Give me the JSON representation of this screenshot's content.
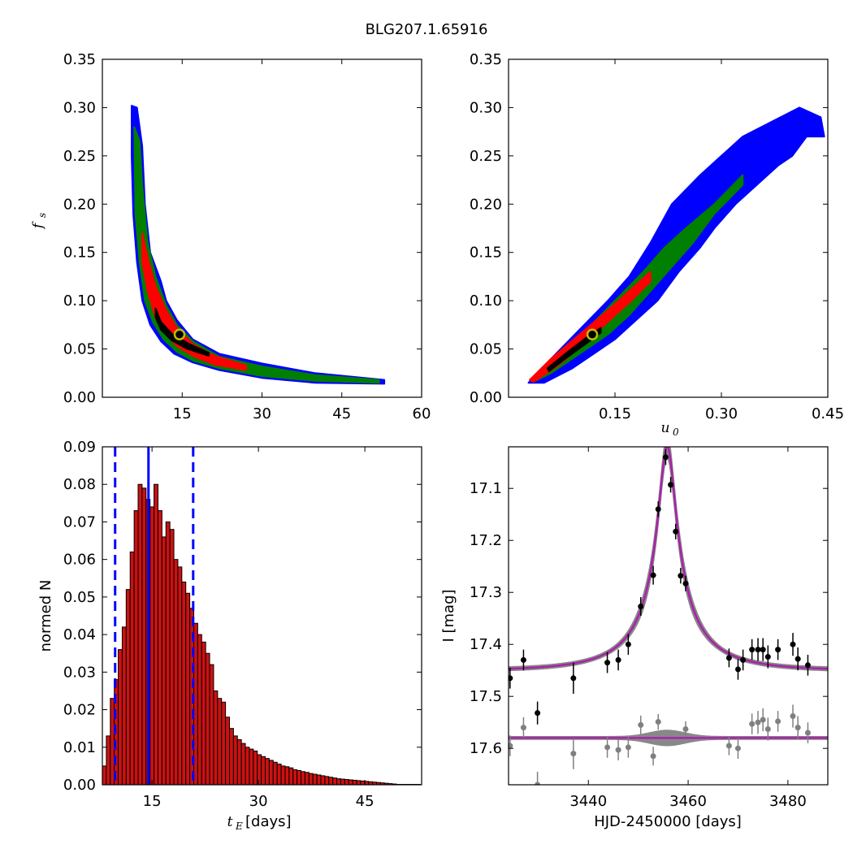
{
  "title": "BLG207.1.65916",
  "colors": {
    "blue": "#0000ff",
    "green": "#007f00",
    "red": "#ff0000",
    "black": "#000000",
    "marker_edge": "#bfbf00",
    "hist_fill": "#cc1111",
    "model": "#aa22aa",
    "band": "#888888",
    "residual": "#808080"
  },
  "chart_data": [
    {
      "id": "fs_vs_tE",
      "type": "heatmap",
      "xlabel": "",
      "ylabel_main": "f",
      "ylabel_sub": "s",
      "xlim": [
        0,
        60
      ],
      "ylim": [
        0,
        0.35
      ],
      "xticks": [
        "15",
        "30",
        "45",
        "60"
      ],
      "yticks": [
        "0.00",
        "0.05",
        "0.10",
        "0.15",
        "0.20",
        "0.25",
        "0.30",
        "0.35"
      ],
      "grid": false,
      "regions": [
        {
          "level": "blue",
          "points": [
            [
              5.5,
              0.302
            ],
            [
              6.5,
              0.3
            ],
            [
              7.5,
              0.26
            ],
            [
              8,
              0.2
            ],
            [
              9,
              0.15
            ],
            [
              11,
              0.12
            ],
            [
              12,
              0.1
            ],
            [
              14,
              0.08
            ],
            [
              17,
              0.06
            ],
            [
              22,
              0.045
            ],
            [
              30,
              0.035
            ],
            [
              40,
              0.025
            ],
            [
              53,
              0.018
            ],
            [
              53,
              0.014
            ],
            [
              40,
              0.015
            ],
            [
              30,
              0.02
            ],
            [
              22,
              0.028
            ],
            [
              17,
              0.036
            ],
            [
              13.5,
              0.045
            ],
            [
              11,
              0.058
            ],
            [
              9,
              0.075
            ],
            [
              7.5,
              0.1
            ],
            [
              6.5,
              0.14
            ],
            [
              5.8,
              0.19
            ],
            [
              5.5,
              0.25
            ]
          ]
        },
        {
          "level": "green",
          "points": [
            [
              6,
              0.28
            ],
            [
              7,
              0.265
            ],
            [
              7.5,
              0.22
            ],
            [
              8.5,
              0.16
            ],
            [
              10,
              0.125
            ],
            [
              12,
              0.095
            ],
            [
              14,
              0.075
            ],
            [
              17,
              0.058
            ],
            [
              22,
              0.042
            ],
            [
              30,
              0.032
            ],
            [
              40,
              0.023
            ],
            [
              52,
              0.018
            ],
            [
              52,
              0.015
            ],
            [
              40,
              0.017
            ],
            [
              30,
              0.022
            ],
            [
              22,
              0.03
            ],
            [
              17,
              0.038
            ],
            [
              14,
              0.047
            ],
            [
              11.5,
              0.06
            ],
            [
              9.5,
              0.078
            ],
            [
              8,
              0.1
            ],
            [
              7,
              0.14
            ],
            [
              6.2,
              0.19
            ]
          ]
        },
        {
          "level": "red",
          "points": [
            [
              7.5,
              0.17
            ],
            [
              8.5,
              0.145
            ],
            [
              10,
              0.115
            ],
            [
              12,
              0.09
            ],
            [
              14,
              0.072
            ],
            [
              17,
              0.055
            ],
            [
              21,
              0.043
            ],
            [
              27,
              0.033
            ],
            [
              27,
              0.028
            ],
            [
              21,
              0.034
            ],
            [
              17,
              0.043
            ],
            [
              14,
              0.053
            ],
            [
              12,
              0.065
            ],
            [
              10,
              0.082
            ],
            [
              8.5,
              0.11
            ],
            [
              7.5,
              0.14
            ]
          ]
        },
        {
          "level": "black",
          "points": [
            [
              10,
              0.092
            ],
            [
              11,
              0.078
            ],
            [
              13,
              0.066
            ],
            [
              16,
              0.056
            ],
            [
              20,
              0.046
            ],
            [
              20,
              0.043
            ],
            [
              16,
              0.05
            ],
            [
              13,
              0.059
            ],
            [
              11,
              0.07
            ],
            [
              10,
              0.083
            ]
          ]
        }
      ],
      "best_fit": {
        "x": 14.5,
        "y": 0.065
      }
    },
    {
      "id": "fs_vs_u0",
      "type": "heatmap",
      "xlabel_main": "u",
      "xlabel_sub": "0",
      "ylabel": "",
      "xlim": [
        0,
        0.45
      ],
      "ylim": [
        0,
        0.35
      ],
      "xticks": [
        "0.15",
        "0.30",
        "0.45"
      ],
      "yticks": [
        "0.00",
        "0.05",
        "0.10",
        "0.15",
        "0.20",
        "0.25",
        "0.30",
        "0.35"
      ],
      "grid": false,
      "regions": [
        {
          "level": "blue",
          "points": [
            [
              0.028,
              0.015
            ],
            [
              0.06,
              0.04
            ],
            [
              0.1,
              0.07
            ],
            [
              0.14,
              0.1
            ],
            [
              0.17,
              0.125
            ],
            [
              0.2,
              0.16
            ],
            [
              0.23,
              0.2
            ],
            [
              0.27,
              0.23
            ],
            [
              0.33,
              0.27
            ],
            [
              0.37,
              0.285
            ],
            [
              0.41,
              0.3
            ],
            [
              0.44,
              0.29
            ],
            [
              0.445,
              0.27
            ],
            [
              0.42,
              0.27
            ],
            [
              0.4,
              0.25
            ],
            [
              0.38,
              0.24
            ],
            [
              0.35,
              0.22
            ],
            [
              0.32,
              0.2
            ],
            [
              0.29,
              0.175
            ],
            [
              0.27,
              0.155
            ],
            [
              0.24,
              0.13
            ],
            [
              0.21,
              0.1
            ],
            [
              0.18,
              0.08
            ],
            [
              0.15,
              0.06
            ],
            [
              0.12,
              0.045
            ],
            [
              0.09,
              0.03
            ],
            [
              0.05,
              0.015
            ]
          ]
        },
        {
          "level": "green",
          "points": [
            [
              0.03,
              0.018
            ],
            [
              0.07,
              0.045
            ],
            [
              0.11,
              0.07
            ],
            [
              0.15,
              0.1
            ],
            [
              0.19,
              0.13
            ],
            [
              0.22,
              0.155
            ],
            [
              0.25,
              0.175
            ],
            [
              0.29,
              0.2
            ],
            [
              0.33,
              0.23
            ],
            [
              0.33,
              0.22
            ],
            [
              0.29,
              0.19
            ],
            [
              0.26,
              0.16
            ],
            [
              0.23,
              0.135
            ],
            [
              0.2,
              0.11
            ],
            [
              0.17,
              0.085
            ],
            [
              0.14,
              0.065
            ],
            [
              0.1,
              0.045
            ],
            [
              0.06,
              0.025
            ],
            [
              0.035,
              0.016
            ]
          ]
        },
        {
          "level": "red",
          "points": [
            [
              0.03,
              0.018
            ],
            [
              0.06,
              0.04
            ],
            [
              0.1,
              0.065
            ],
            [
              0.14,
              0.09
            ],
            [
              0.17,
              0.11
            ],
            [
              0.2,
              0.13
            ],
            [
              0.2,
              0.12
            ],
            [
              0.17,
              0.098
            ],
            [
              0.14,
              0.078
            ],
            [
              0.11,
              0.058
            ],
            [
              0.07,
              0.033
            ],
            [
              0.035,
              0.016
            ]
          ]
        },
        {
          "level": "black",
          "points": [
            [
              0.055,
              0.03
            ],
            [
              0.08,
              0.045
            ],
            [
              0.11,
              0.062
            ],
            [
              0.13,
              0.072
            ],
            [
              0.13,
              0.067
            ],
            [
              0.11,
              0.056
            ],
            [
              0.08,
              0.04
            ],
            [
              0.057,
              0.027
            ]
          ]
        }
      ],
      "best_fit": {
        "x": 0.118,
        "y": 0.065
      }
    },
    {
      "id": "tE_hist",
      "type": "bar",
      "xlabel_main": "t",
      "xlabel_sub": "E",
      "xlabel_rest": " [days]",
      "ylabel": "normed N",
      "xlim": [
        8,
        53
      ],
      "ylim": [
        0,
        0.09
      ],
      "xticks": [
        "15",
        "30",
        "45"
      ],
      "yticks": [
        "0.00",
        "0.01",
        "0.02",
        "0.03",
        "0.04",
        "0.05",
        "0.06",
        "0.07",
        "0.08",
        "0.09"
      ],
      "bin_start": 8.0,
      "bin_width": 0.56,
      "values": [
        0.005,
        0.013,
        0.023,
        0.028,
        0.036,
        0.042,
        0.052,
        0.062,
        0.073,
        0.08,
        0.079,
        0.076,
        0.074,
        0.08,
        0.073,
        0.066,
        0.07,
        0.068,
        0.06,
        0.058,
        0.054,
        0.051,
        0.047,
        0.043,
        0.04,
        0.038,
        0.035,
        0.032,
        0.025,
        0.023,
        0.022,
        0.018,
        0.015,
        0.013,
        0.012,
        0.011,
        0.01,
        0.0095,
        0.009,
        0.008,
        0.0075,
        0.007,
        0.0065,
        0.006,
        0.0055,
        0.005,
        0.0048,
        0.0045,
        0.004,
        0.0038,
        0.0035,
        0.0033,
        0.003,
        0.0028,
        0.0026,
        0.0024,
        0.0022,
        0.002,
        0.0018,
        0.0016,
        0.0015,
        0.0014,
        0.0013,
        0.0012,
        0.0011,
        0.001,
        0.0009,
        0.0008,
        0.0007,
        0.0006,
        0.0005,
        0.0004,
        0.0003,
        0.0002,
        0.0001,
        0.0001,
        0.0001,
        0.0001,
        0.0001,
        0.0001
      ],
      "median": 14.5,
      "lower": 9.8,
      "upper": 20.8
    },
    {
      "id": "lightcurve",
      "type": "scatter",
      "xlabel": "HJD-2450000 [days]",
      "ylabel": "I [mag]",
      "xlim": [
        3424,
        3488
      ],
      "ylim": [
        17.67,
        17.02
      ],
      "y_inverted": true,
      "xticks": [
        "3440",
        "3460",
        "3480"
      ],
      "yticks": [
        "17.1",
        "17.2",
        "17.3",
        "17.4",
        "17.5",
        "17.6"
      ],
      "model": {
        "t0": 3455.8,
        "tE": 14.5,
        "u0": 0.118,
        "fs": 0.065,
        "I_base": 17.45
      },
      "data_points": [
        [
          3424.3,
          17.465,
          0.02
        ],
        [
          3427,
          17.43,
          0.02
        ],
        [
          3429.8,
          17.532,
          0.022
        ],
        [
          3437,
          17.465,
          0.03
        ],
        [
          3443.8,
          17.435,
          0.02
        ],
        [
          3446,
          17.43,
          0.02
        ],
        [
          3448,
          17.4,
          0.02
        ],
        [
          3450.5,
          17.327,
          0.018
        ],
        [
          3453,
          17.267,
          0.018
        ],
        [
          3454,
          17.14,
          0.015
        ],
        [
          3455.5,
          17.04,
          0.015
        ],
        [
          3456.5,
          17.093,
          0.015
        ],
        [
          3457.5,
          17.183,
          0.015
        ],
        [
          3458.5,
          17.268,
          0.015
        ],
        [
          3459.5,
          17.283,
          0.015
        ],
        [
          3468.2,
          17.426,
          0.018
        ],
        [
          3470,
          17.448,
          0.02
        ],
        [
          3471,
          17.43,
          0.02
        ],
        [
          3472.8,
          17.41,
          0.02
        ],
        [
          3474,
          17.41,
          0.022
        ],
        [
          3475,
          17.41,
          0.022
        ],
        [
          3476,
          17.424,
          0.022
        ],
        [
          3478,
          17.41,
          0.02
        ],
        [
          3481,
          17.4,
          0.022
        ],
        [
          3482,
          17.428,
          0.022
        ],
        [
          3484,
          17.44,
          0.02
        ]
      ],
      "residual_offset": 17.58,
      "residual_points": [
        [
          3424.3,
          17.595,
          0.02
        ],
        [
          3427,
          17.56,
          0.02
        ],
        [
          3429.8,
          17.67,
          0.025
        ],
        [
          3437,
          17.61,
          0.03
        ],
        [
          3443.8,
          17.598,
          0.02
        ],
        [
          3446,
          17.603,
          0.02
        ],
        [
          3448,
          17.598,
          0.02
        ],
        [
          3450.5,
          17.555,
          0.018
        ],
        [
          3453,
          17.615,
          0.018
        ],
        [
          3454,
          17.549,
          0.015
        ],
        [
          3459.5,
          17.563,
          0.015
        ],
        [
          3468.2,
          17.595,
          0.018
        ],
        [
          3470,
          17.6,
          0.02
        ],
        [
          3472.8,
          17.553,
          0.02
        ],
        [
          3474,
          17.55,
          0.022
        ],
        [
          3475,
          17.545,
          0.022
        ],
        [
          3476,
          17.563,
          0.022
        ],
        [
          3478,
          17.548,
          0.02
        ],
        [
          3481,
          17.538,
          0.022
        ],
        [
          3482,
          17.56,
          0.022
        ],
        [
          3484,
          17.57,
          0.02
        ]
      ]
    }
  ]
}
